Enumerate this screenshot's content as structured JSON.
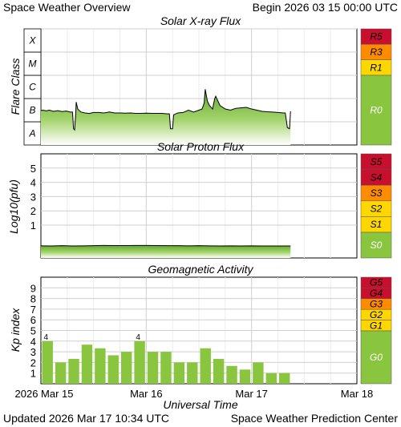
{
  "header": {
    "title": "Space Weather Overview",
    "begin": "Begin 2026 03 15 00:00 UTC"
  },
  "footer": {
    "updated": "Updated 2026 Mar 17 10:34 UTC",
    "center": "Space Weather Prediction Center"
  },
  "colors": {
    "green": "#8ac540",
    "red": "#c8102e",
    "orange": "#ff8c00",
    "yellow": "#ffd700"
  },
  "chart_data": [
    {
      "type": "area",
      "title": "Solar X-ray Flux",
      "ylabel": "Flare Class",
      "y_classes": [
        "A",
        "B",
        "C",
        "M",
        "X"
      ],
      "ylim_log10_wm2": [
        -8,
        -3
      ],
      "x_day_ticks": [
        "2026 Mar 15",
        "Mar 16",
        "Mar 17",
        "Mar 18"
      ],
      "x_range_days": [
        0,
        3
      ],
      "data_end_day": 2.37,
      "series": [
        {
          "values": [
            [
              0.0,
              -6.52
            ],
            [
              0.02,
              -6.5
            ],
            [
              0.05,
              -6.53
            ],
            [
              0.08,
              -6.5
            ],
            [
              0.12,
              -6.55
            ],
            [
              0.16,
              -6.52
            ],
            [
              0.2,
              -6.56
            ],
            [
              0.24,
              -6.54
            ],
            [
              0.28,
              -6.58
            ],
            [
              0.3,
              -6.58
            ],
            [
              0.31,
              -7.3
            ],
            [
              0.32,
              -7.35
            ],
            [
              0.33,
              -6.7
            ],
            [
              0.335,
              -6.15
            ],
            [
              0.35,
              -6.45
            ],
            [
              0.38,
              -6.58
            ],
            [
              0.42,
              -6.62
            ],
            [
              0.46,
              -6.64
            ],
            [
              0.5,
              -6.6
            ],
            [
              0.55,
              -6.6
            ],
            [
              0.6,
              -6.62
            ],
            [
              0.65,
              -6.58
            ],
            [
              0.7,
              -6.62
            ],
            [
              0.75,
              -6.62
            ],
            [
              0.8,
              -6.63
            ],
            [
              0.85,
              -6.62
            ],
            [
              0.9,
              -6.64
            ],
            [
              0.95,
              -6.64
            ],
            [
              1.0,
              -6.63
            ],
            [
              1.05,
              -6.64
            ],
            [
              1.1,
              -6.64
            ],
            [
              1.15,
              -6.64
            ],
            [
              1.2,
              -6.66
            ],
            [
              1.22,
              -6.66
            ],
            [
              1.23,
              -7.3
            ],
            [
              1.25,
              -7.3
            ],
            [
              1.26,
              -6.7
            ],
            [
              1.3,
              -6.62
            ],
            [
              1.35,
              -6.6
            ],
            [
              1.4,
              -6.5
            ],
            [
              1.45,
              -6.58
            ],
            [
              1.5,
              -6.5
            ],
            [
              1.53,
              -6.45
            ],
            [
              1.55,
              -6.2
            ],
            [
              1.56,
              -5.6
            ],
            [
              1.58,
              -6.1
            ],
            [
              1.6,
              -6.3
            ],
            [
              1.63,
              -6.45
            ],
            [
              1.65,
              -6.0
            ],
            [
              1.66,
              -5.9
            ],
            [
              1.7,
              -6.3
            ],
            [
              1.75,
              -6.45
            ],
            [
              1.8,
              -6.5
            ],
            [
              1.85,
              -6.42
            ],
            [
              1.9,
              -6.4
            ],
            [
              1.95,
              -6.38
            ],
            [
              2.0,
              -6.45
            ],
            [
              2.05,
              -6.5
            ],
            [
              2.1,
              -6.55
            ],
            [
              2.15,
              -6.57
            ],
            [
              2.2,
              -6.58
            ],
            [
              2.25,
              -6.6
            ],
            [
              2.3,
              -6.62
            ],
            [
              2.32,
              -6.62
            ],
            [
              2.34,
              -7.25
            ],
            [
              2.36,
              -7.3
            ],
            [
              2.37,
              -6.55
            ]
          ]
        }
      ],
      "right_scale": [
        {
          "label": "R5",
          "color": "#c8102e"
        },
        {
          "label": "R3",
          "color": "#ff8c00"
        },
        {
          "label": "R1",
          "color": "#ffd700"
        },
        {
          "label": "R0",
          "color": "#8ac540"
        }
      ]
    },
    {
      "type": "area",
      "title": "Solar Proton Flux",
      "ylabel": "Log10(pfu)",
      "yticks": [
        1,
        2,
        3,
        4,
        5
      ],
      "ylim": [
        -1.3,
        6
      ],
      "x_day_ticks": [
        "2026 Mar 15",
        "Mar 16",
        "Mar 17",
        "Mar 18"
      ],
      "x_range_days": [
        0,
        3
      ],
      "data_end_day": 2.37,
      "series": [
        {
          "values": [
            [
              0.0,
              -0.45
            ],
            [
              0.1,
              -0.46
            ],
            [
              0.2,
              -0.44
            ],
            [
              0.3,
              -0.46
            ],
            [
              0.4,
              -0.45
            ],
            [
              0.5,
              -0.44
            ],
            [
              0.6,
              -0.42
            ],
            [
              0.7,
              -0.43
            ],
            [
              0.8,
              -0.43
            ],
            [
              0.9,
              -0.42
            ],
            [
              1.0,
              -0.42
            ],
            [
              1.1,
              -0.43
            ],
            [
              1.2,
              -0.44
            ],
            [
              1.3,
              -0.44
            ],
            [
              1.4,
              -0.45
            ],
            [
              1.5,
              -0.44
            ],
            [
              1.6,
              -0.45
            ],
            [
              1.7,
              -0.46
            ],
            [
              1.8,
              -0.45
            ],
            [
              1.9,
              -0.46
            ],
            [
              2.0,
              -0.45
            ],
            [
              2.1,
              -0.46
            ],
            [
              2.2,
              -0.46
            ],
            [
              2.3,
              -0.46
            ],
            [
              2.37,
              -0.46
            ]
          ]
        }
      ],
      "right_scale": [
        {
          "label": "S5",
          "color": "#c8102e"
        },
        {
          "label": "S4",
          "color": "#c8102e"
        },
        {
          "label": "S3",
          "color": "#ff8c00"
        },
        {
          "label": "S2",
          "color": "#ffd700"
        },
        {
          "label": "S1",
          "color": "#ffd700"
        },
        {
          "label": "S0",
          "color": "#8ac540"
        }
      ]
    },
    {
      "type": "bar",
      "title": "Geomagnetic Activity",
      "ylabel": "Kp index",
      "yticks": [
        1,
        2,
        3,
        4,
        5,
        6,
        7,
        8,
        9
      ],
      "ylim": [
        0,
        10
      ],
      "x_day_ticks": [
        "2026 Mar 15",
        "Mar 16",
        "Mar 17",
        "Mar 18"
      ],
      "x_range_days": [
        0,
        3
      ],
      "bar_interval_hours": 3,
      "values": [
        4,
        2,
        2.33,
        3.67,
        3.33,
        2.67,
        3,
        4,
        3,
        3,
        2,
        2,
        3.33,
        2.33,
        1.67,
        1.33,
        2,
        1,
        1
      ],
      "data_labels": [
        {
          "index": 0,
          "text": "4"
        },
        {
          "index": 7,
          "text": "4"
        }
      ],
      "right_scale": [
        {
          "label": "G5",
          "color": "#c8102e"
        },
        {
          "label": "G4",
          "color": "#c8102e"
        },
        {
          "label": "G3",
          "color": "#ff8c00"
        },
        {
          "label": "G2",
          "color": "#ffd700"
        },
        {
          "label": "G1",
          "color": "#ffd700"
        },
        {
          "label": "G0",
          "color": "#8ac540"
        }
      ]
    }
  ],
  "x_axis": {
    "ticks": [
      "2026 Mar 15",
      "Mar 16",
      "Mar 17",
      "Mar 18"
    ],
    "label": "Universal Time"
  }
}
